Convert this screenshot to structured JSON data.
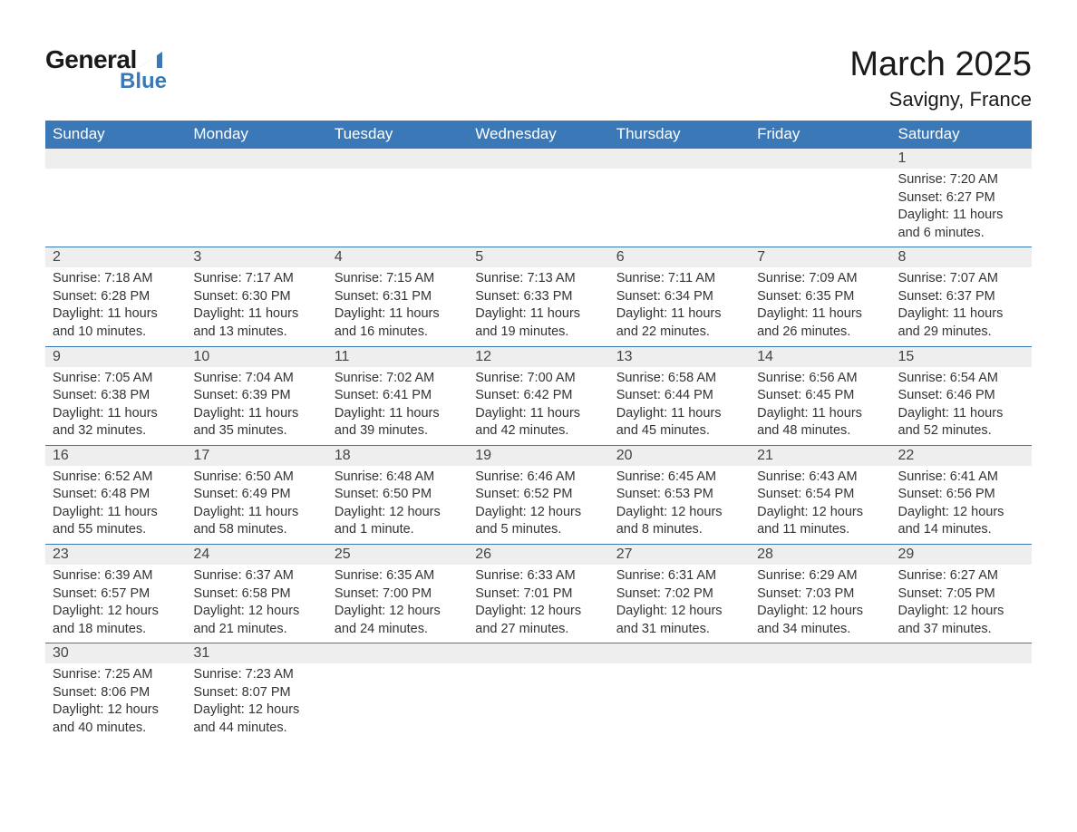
{
  "logo": {
    "text_top": "General",
    "text_bottom": "Blue",
    "color_text": "#1a1a1a",
    "color_blue": "#3a78b8"
  },
  "header": {
    "title": "March 2025",
    "location": "Savigny, France"
  },
  "calendar": {
    "header_bg": "#3a78b8",
    "header_fg": "#ffffff",
    "daybar_bg": "#eeeeee",
    "daybar_border": "#3a78b8",
    "text_color": "#333333",
    "font_size_body": 14.5,
    "font_size_daynum": 16,
    "font_size_header": 17,
    "day_headers": [
      "Sunday",
      "Monday",
      "Tuesday",
      "Wednesday",
      "Thursday",
      "Friday",
      "Saturday"
    ],
    "weeks": [
      [
        null,
        null,
        null,
        null,
        null,
        null,
        {
          "n": "1",
          "sunrise": "Sunrise: 7:20 AM",
          "sunset": "Sunset: 6:27 PM",
          "daylight": "Daylight: 11 hours and 6 minutes."
        }
      ],
      [
        {
          "n": "2",
          "sunrise": "Sunrise: 7:18 AM",
          "sunset": "Sunset: 6:28 PM",
          "daylight": "Daylight: 11 hours and 10 minutes."
        },
        {
          "n": "3",
          "sunrise": "Sunrise: 7:17 AM",
          "sunset": "Sunset: 6:30 PM",
          "daylight": "Daylight: 11 hours and 13 minutes."
        },
        {
          "n": "4",
          "sunrise": "Sunrise: 7:15 AM",
          "sunset": "Sunset: 6:31 PM",
          "daylight": "Daylight: 11 hours and 16 minutes."
        },
        {
          "n": "5",
          "sunrise": "Sunrise: 7:13 AM",
          "sunset": "Sunset: 6:33 PM",
          "daylight": "Daylight: 11 hours and 19 minutes."
        },
        {
          "n": "6",
          "sunrise": "Sunrise: 7:11 AM",
          "sunset": "Sunset: 6:34 PM",
          "daylight": "Daylight: 11 hours and 22 minutes."
        },
        {
          "n": "7",
          "sunrise": "Sunrise: 7:09 AM",
          "sunset": "Sunset: 6:35 PM",
          "daylight": "Daylight: 11 hours and 26 minutes."
        },
        {
          "n": "8",
          "sunrise": "Sunrise: 7:07 AM",
          "sunset": "Sunset: 6:37 PM",
          "daylight": "Daylight: 11 hours and 29 minutes."
        }
      ],
      [
        {
          "n": "9",
          "sunrise": "Sunrise: 7:05 AM",
          "sunset": "Sunset: 6:38 PM",
          "daylight": "Daylight: 11 hours and 32 minutes."
        },
        {
          "n": "10",
          "sunrise": "Sunrise: 7:04 AM",
          "sunset": "Sunset: 6:39 PM",
          "daylight": "Daylight: 11 hours and 35 minutes."
        },
        {
          "n": "11",
          "sunrise": "Sunrise: 7:02 AM",
          "sunset": "Sunset: 6:41 PM",
          "daylight": "Daylight: 11 hours and 39 minutes."
        },
        {
          "n": "12",
          "sunrise": "Sunrise: 7:00 AM",
          "sunset": "Sunset: 6:42 PM",
          "daylight": "Daylight: 11 hours and 42 minutes."
        },
        {
          "n": "13",
          "sunrise": "Sunrise: 6:58 AM",
          "sunset": "Sunset: 6:44 PM",
          "daylight": "Daylight: 11 hours and 45 minutes."
        },
        {
          "n": "14",
          "sunrise": "Sunrise: 6:56 AM",
          "sunset": "Sunset: 6:45 PM",
          "daylight": "Daylight: 11 hours and 48 minutes."
        },
        {
          "n": "15",
          "sunrise": "Sunrise: 6:54 AM",
          "sunset": "Sunset: 6:46 PM",
          "daylight": "Daylight: 11 hours and 52 minutes."
        }
      ],
      [
        {
          "n": "16",
          "sunrise": "Sunrise: 6:52 AM",
          "sunset": "Sunset: 6:48 PM",
          "daylight": "Daylight: 11 hours and 55 minutes."
        },
        {
          "n": "17",
          "sunrise": "Sunrise: 6:50 AM",
          "sunset": "Sunset: 6:49 PM",
          "daylight": "Daylight: 11 hours and 58 minutes."
        },
        {
          "n": "18",
          "sunrise": "Sunrise: 6:48 AM",
          "sunset": "Sunset: 6:50 PM",
          "daylight": "Daylight: 12 hours and 1 minute."
        },
        {
          "n": "19",
          "sunrise": "Sunrise: 6:46 AM",
          "sunset": "Sunset: 6:52 PM",
          "daylight": "Daylight: 12 hours and 5 minutes."
        },
        {
          "n": "20",
          "sunrise": "Sunrise: 6:45 AM",
          "sunset": "Sunset: 6:53 PM",
          "daylight": "Daylight: 12 hours and 8 minutes."
        },
        {
          "n": "21",
          "sunrise": "Sunrise: 6:43 AM",
          "sunset": "Sunset: 6:54 PM",
          "daylight": "Daylight: 12 hours and 11 minutes."
        },
        {
          "n": "22",
          "sunrise": "Sunrise: 6:41 AM",
          "sunset": "Sunset: 6:56 PM",
          "daylight": "Daylight: 12 hours and 14 minutes."
        }
      ],
      [
        {
          "n": "23",
          "sunrise": "Sunrise: 6:39 AM",
          "sunset": "Sunset: 6:57 PM",
          "daylight": "Daylight: 12 hours and 18 minutes."
        },
        {
          "n": "24",
          "sunrise": "Sunrise: 6:37 AM",
          "sunset": "Sunset: 6:58 PM",
          "daylight": "Daylight: 12 hours and 21 minutes."
        },
        {
          "n": "25",
          "sunrise": "Sunrise: 6:35 AM",
          "sunset": "Sunset: 7:00 PM",
          "daylight": "Daylight: 12 hours and 24 minutes."
        },
        {
          "n": "26",
          "sunrise": "Sunrise: 6:33 AM",
          "sunset": "Sunset: 7:01 PM",
          "daylight": "Daylight: 12 hours and 27 minutes."
        },
        {
          "n": "27",
          "sunrise": "Sunrise: 6:31 AM",
          "sunset": "Sunset: 7:02 PM",
          "daylight": "Daylight: 12 hours and 31 minutes."
        },
        {
          "n": "28",
          "sunrise": "Sunrise: 6:29 AM",
          "sunset": "Sunset: 7:03 PM",
          "daylight": "Daylight: 12 hours and 34 minutes."
        },
        {
          "n": "29",
          "sunrise": "Sunrise: 6:27 AM",
          "sunset": "Sunset: 7:05 PM",
          "daylight": "Daylight: 12 hours and 37 minutes."
        }
      ],
      [
        {
          "n": "30",
          "sunrise": "Sunrise: 7:25 AM",
          "sunset": "Sunset: 8:06 PM",
          "daylight": "Daylight: 12 hours and 40 minutes."
        },
        {
          "n": "31",
          "sunrise": "Sunrise: 7:23 AM",
          "sunset": "Sunset: 8:07 PM",
          "daylight": "Daylight: 12 hours and 44 minutes."
        },
        null,
        null,
        null,
        null,
        null
      ]
    ]
  }
}
